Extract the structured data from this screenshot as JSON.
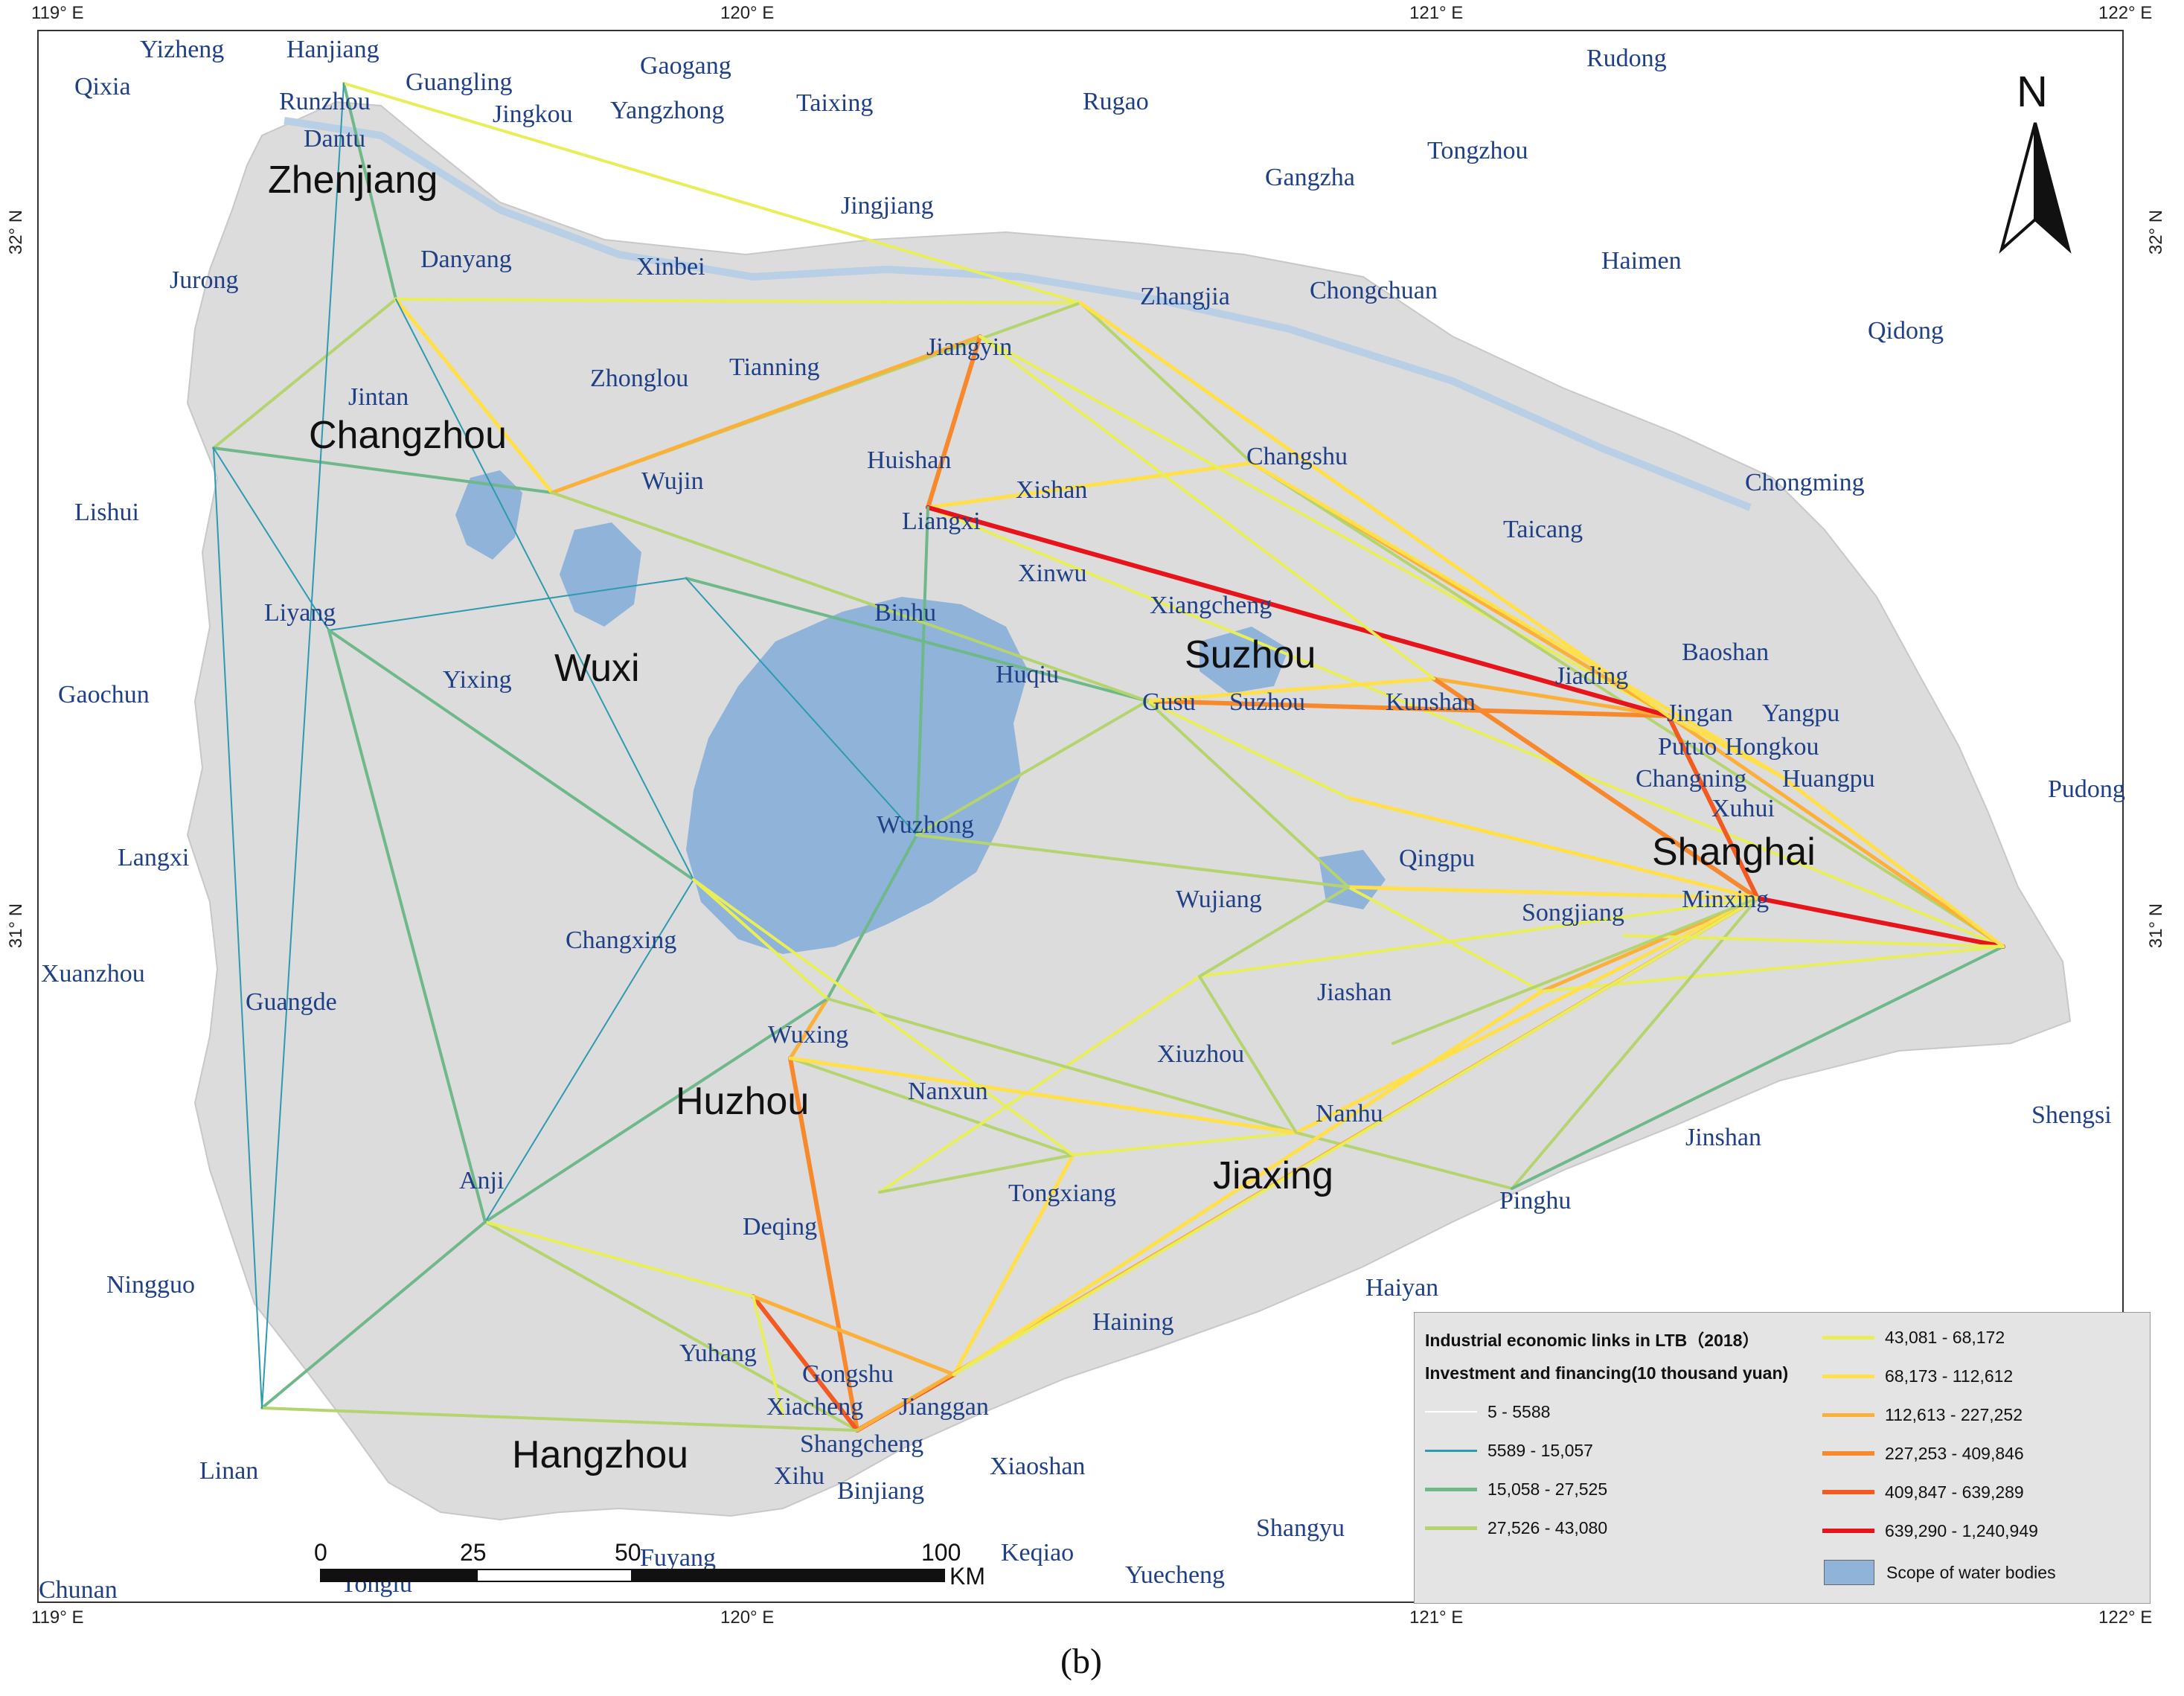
{
  "axes": {
    "longitude_ticks": [
      "119° E",
      "120° E",
      "121° E",
      "122° E"
    ],
    "latitude_ticks": [
      "32° N",
      "31° N"
    ]
  },
  "north_label": "N",
  "major_cities": [
    "Zhenjiang",
    "Changzhou",
    "Wuxi",
    "Suzhou",
    "Shanghai",
    "Huzhou",
    "Jiaxing",
    "Hangzhou"
  ],
  "cities": [
    "Yizheng",
    "Hanjiang",
    "Qixia",
    "Runzhou",
    "Guangling",
    "Gaogang",
    "Jingkou",
    "Yangzhong",
    "Taixing",
    "Rugao",
    "Rudong",
    "Dantu",
    "Tongzhou",
    "Gangzha",
    "Jingjiang",
    "Danyang",
    "Xinbei",
    "Jurong",
    "Zhangjia",
    "Chongchuan",
    "Haimen",
    "Qidong",
    "Jiangyin",
    "Zhonglou",
    "Tianning",
    "Jintan",
    "Changshu",
    "Huishan",
    "Xishan",
    "Wujin",
    "Chongming",
    "Lishui",
    "Liangxi",
    "Taicang",
    "Xinwu",
    "Xiangcheng",
    "Liyang",
    "Binhu",
    "Baoshan",
    "Huqiu",
    "Yixing",
    "Jiading",
    "Gaochun",
    "Gusu",
    "Suzhou",
    "Kunshan",
    "Jingan",
    "Yangpu",
    "Putuo",
    "Hongkou",
    "Changning",
    "Huangpu",
    "Xuhui",
    "Pudong",
    "Wuzhong",
    "Langxi",
    "Qingpu",
    "Wujiang",
    "Minxing",
    "Songjiang",
    "Changxing",
    "Xuanzhou",
    "Guangde",
    "Jiashan",
    "Wuxing",
    "Xiuzhou",
    "Nanxun",
    "Nanhu",
    "Shengsi",
    "Jinshan",
    "Anji",
    "Tongxiang",
    "Pinghu",
    "Deqing",
    "Ningguo",
    "Haiyan",
    "Haining",
    "Yuhang",
    "Gongshu",
    "Xiacheng",
    "Jianggan",
    "Shangcheng",
    "Linan",
    "Xihu",
    "Xiaoshan",
    "Binjiang",
    "Shangyu",
    "Fuyang",
    "Keqiao",
    "Yuecheng",
    "Tonglu",
    "Chunan"
  ],
  "legend": {
    "title": "Industrial economic links in LTB（2018）",
    "subtitle": "Investment and financing(10 thousand yuan)",
    "classes": [
      {
        "label": "5 - 5588",
        "color": "#ffffff"
      },
      {
        "label": "5589 - 15,057",
        "color": "#2e9ab0"
      },
      {
        "label": "15,058 - 27,525",
        "color": "#6fb88a"
      },
      {
        "label": "27,526 - 43,080",
        "color": "#b5d470"
      },
      {
        "label": "43,081 - 68,172",
        "color": "#e8ee5a"
      },
      {
        "label": "68,173 - 112,612",
        "color": "#ffe04a"
      },
      {
        "label": "112,613 - 227,252",
        "color": "#fbb03a"
      },
      {
        "label": "227,253 - 409,846",
        "color": "#f7882b"
      },
      {
        "label": "409,847 - 639,289",
        "color": "#f25a22"
      },
      {
        "label": "639,290 - 1,240,949",
        "color": "#e8141c"
      }
    ],
    "water_label": "Scope of water bodies",
    "water_color": "#8fb3d9"
  },
  "scale": {
    "ticks": [
      "0",
      "25",
      "50",
      "100"
    ],
    "unit": "KM"
  },
  "caption": "(b)",
  "colors": {
    "land": "#dcdcdc",
    "water": "#8fb3d9",
    "city_text": "#1f3f86"
  }
}
